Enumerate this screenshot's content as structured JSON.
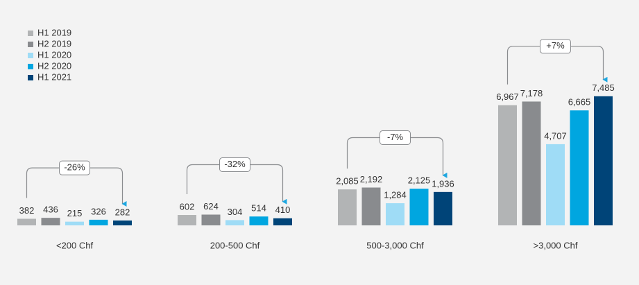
{
  "chart_data": {
    "type": "bar",
    "categories": [
      "<200 Chf",
      "200-500 Chf",
      "500-3,000 Chf",
      ">3,000 Chf"
    ],
    "series": [
      {
        "name": "H1 2019",
        "color": "#b2b4b5",
        "values": [
          382,
          602,
          2085,
          6967
        ],
        "value_labels": [
          "382",
          "602",
          "2,085",
          "6,967"
        ]
      },
      {
        "name": "H2 2019",
        "color": "#898b8e",
        "values": [
          436,
          624,
          2192,
          7178
        ],
        "value_labels": [
          "436",
          "624",
          "2,192",
          "7,178"
        ]
      },
      {
        "name": "H1 2020",
        "color": "#9fdcf6",
        "values": [
          215,
          304,
          1284,
          4707
        ],
        "value_labels": [
          "215",
          "304",
          "1,284",
          "4,707"
        ]
      },
      {
        "name": "H2 2020",
        "color": "#00a6e0",
        "values": [
          326,
          514,
          2125,
          6665
        ],
        "value_labels": [
          "326",
          "514",
          "2,125",
          "6,665"
        ]
      },
      {
        "name": "H1 2021",
        "color": "#004478",
        "values": [
          282,
          410,
          1936,
          7485
        ],
        "value_labels": [
          "282",
          "410",
          "1,936",
          "7,485"
        ]
      }
    ],
    "change_labels": [
      "-26%",
      "-32%",
      "-7%",
      "+7%"
    ],
    "ylim": [
      0,
      8000
    ],
    "legend": "top-left"
  }
}
